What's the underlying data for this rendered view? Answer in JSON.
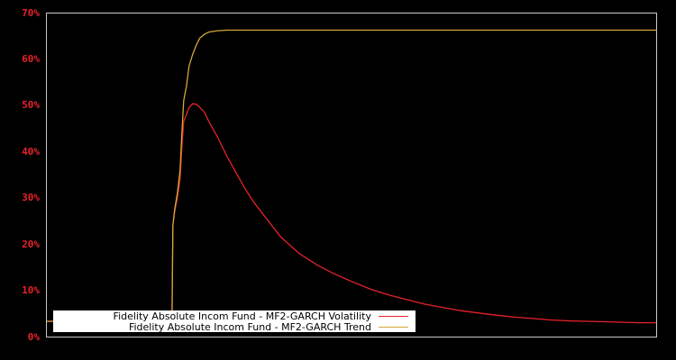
{
  "chart_data": {
    "type": "line",
    "title": "",
    "xlabel": "",
    "ylabel": "",
    "ylim": [
      0,
      70
    ],
    "y_ticks": [
      "0%",
      "10%",
      "20%",
      "30%",
      "40%",
      "50%",
      "60%",
      "70%"
    ],
    "grid": false,
    "legend_position": "bottom-left, inside plot",
    "x": [
      0,
      20,
      40,
      60,
      80,
      100,
      110,
      120,
      130,
      135,
      138,
      139,
      140,
      142,
      145,
      148,
      150,
      152,
      155,
      158,
      162,
      166,
      170,
      175,
      180,
      190,
      200,
      210,
      220,
      230,
      240,
      250,
      260,
      280,
      300,
      320,
      340,
      360,
      380,
      400,
      420,
      440,
      460,
      480,
      500,
      520,
      540,
      560,
      580,
      600,
      620,
      640,
      660,
      677
    ],
    "series": [
      {
        "name": "Fidelity Absolute Incom Fund - MF2-GARCH Volatility",
        "color": "#e8222a",
        "values": [
          3.3,
          3.3,
          3.3,
          3.3,
          3.3,
          3.3,
          3.3,
          3.3,
          3.3,
          3.3,
          3.3,
          3.0,
          24.0,
          27.0,
          30.0,
          34.0,
          41.0,
          46.5,
          48.0,
          49.5,
          50.3,
          50.2,
          49.5,
          48.5,
          46.5,
          43.0,
          39.0,
          35.5,
          32.0,
          29.0,
          26.5,
          24.0,
          21.5,
          18.0,
          15.5,
          13.5,
          11.8,
          10.2,
          9.0,
          8.0,
          7.0,
          6.3,
          5.6,
          5.1,
          4.6,
          4.2,
          3.9,
          3.6,
          3.4,
          3.3,
          3.2,
          3.1,
          3.0,
          3.0
        ]
      },
      {
        "name": "Fidelity Absolute Incom Fund - MF2-GARCH Trend",
        "color": "#d4a838",
        "values": [
          3.3,
          3.3,
          3.3,
          3.3,
          3.3,
          3.3,
          3.3,
          3.3,
          3.3,
          3.3,
          3.3,
          3.0,
          24.0,
          27.5,
          31.0,
          36.0,
          44.0,
          51.0,
          54.0,
          58.5,
          61.0,
          63.0,
          64.5,
          65.3,
          65.8,
          66.1,
          66.2,
          66.2,
          66.2,
          66.2,
          66.2,
          66.2,
          66.2,
          66.2,
          66.2,
          66.2,
          66.2,
          66.2,
          66.2,
          66.2,
          66.2,
          66.2,
          66.2,
          66.2,
          66.2,
          66.2,
          66.2,
          66.2,
          66.2,
          66.2,
          66.2,
          66.2,
          66.2,
          66.2
        ]
      }
    ]
  },
  "legend": {
    "items": [
      {
        "label": "Fidelity Absolute Incom Fund - MF2-GARCH Volatility",
        "color": "#e8222a"
      },
      {
        "label": "Fidelity Absolute Incom Fund - MF2-GARCH Trend",
        "color": "#d4a838"
      }
    ]
  },
  "colors": {
    "background": "#000000",
    "axis": "#c8c8c8",
    "tick_label": "#e8222a"
  }
}
